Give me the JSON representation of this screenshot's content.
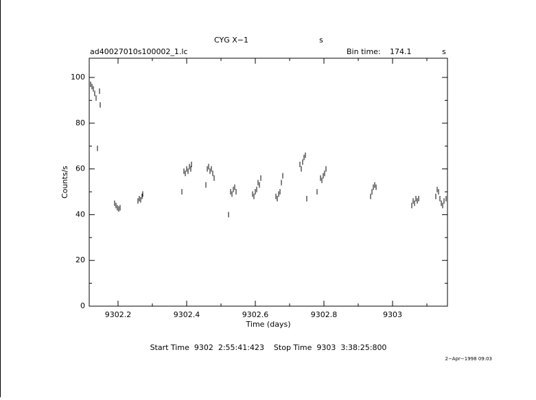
{
  "chart_data": {
    "type": "scatter",
    "title": "CYG X−1",
    "title_unit": "s",
    "file_name": "ad40027010s100002_1.lc",
    "bin_time_label": "Bin time:",
    "bin_time": "174.1",
    "bin_time_unit": "s",
    "x_label": "Time (days)",
    "y_label": "Counts/s",
    "footer": "Start Time  9302  2:55:41:423    Stop Time  9303  3:38:25:800",
    "date": "2−Apr−1998 09:03",
    "color": "#000000",
    "xlim": [
      9302.116,
      9303.16
    ],
    "ylim": [
      0,
      108.4
    ],
    "xticks": [
      9302.2,
      9302.4,
      9302.6,
      9302.8,
      9303
    ],
    "yticks": [
      0,
      20,
      40,
      60,
      80,
      100
    ],
    "xminorticks": [
      9302.3,
      9302.5,
      9302.7,
      9302.9,
      9303.1
    ],
    "yminorticks": [
      10,
      30,
      50,
      70,
      90
    ],
    "x": [
      9302.116,
      9302.12,
      9302.124,
      9302.128,
      9302.132,
      9302.136,
      9302.14,
      9302.146,
      9302.148,
      9302.19,
      9302.194,
      9302.198,
      9302.202,
      9302.206,
      9302.258,
      9302.262,
      9302.266,
      9302.27,
      9302.272,
      9302.386,
      9302.392,
      9302.396,
      9302.4,
      9302.404,
      9302.408,
      9302.412,
      9302.414,
      9302.456,
      9302.46,
      9302.464,
      9302.468,
      9302.472,
      9302.476,
      9302.48,
      9302.522,
      9302.528,
      9302.532,
      9302.536,
      9302.54,
      9302.544,
      9302.592,
      9302.596,
      9302.6,
      9302.604,
      9302.608,
      9302.612,
      9302.616,
      9302.66,
      9302.664,
      9302.668,
      9302.672,
      9302.676,
      9302.68,
      9302.73,
      9302.734,
      9302.738,
      9302.742,
      9302.746,
      9302.75,
      9302.78,
      9302.79,
      9302.794,
      9302.798,
      9302.802,
      9302.806,
      9302.936,
      9302.94,
      9302.944,
      9302.948,
      9302.952,
      9303.056,
      9303.06,
      9303.064,
      9303.068,
      9303.072,
      9303.076,
      9303.126,
      9303.13,
      9303.134,
      9303.138,
      9303.142,
      9303.146,
      9303.15,
      9303.156
    ],
    "values": [
      94,
      97,
      96,
      95,
      93,
      91,
      69,
      94,
      88,
      45,
      44,
      43,
      42.5,
      43,
      46,
      47,
      46.5,
      48,
      49,
      50,
      59,
      58,
      60,
      59,
      61,
      60,
      62,
      53,
      60,
      61,
      59,
      60,
      58,
      56,
      40,
      50,
      49,
      51,
      52,
      50,
      49,
      48,
      50,
      51,
      54,
      53,
      56,
      48,
      47,
      49,
      50,
      54,
      57,
      62,
      60,
      63,
      65,
      66,
      47,
      50,
      56,
      55,
      57,
      58,
      60,
      48,
      50,
      52,
      53,
      52,
      44,
      46,
      45,
      47,
      46,
      47,
      48,
      51,
      50,
      47,
      45,
      44,
      46,
      47
    ]
  }
}
